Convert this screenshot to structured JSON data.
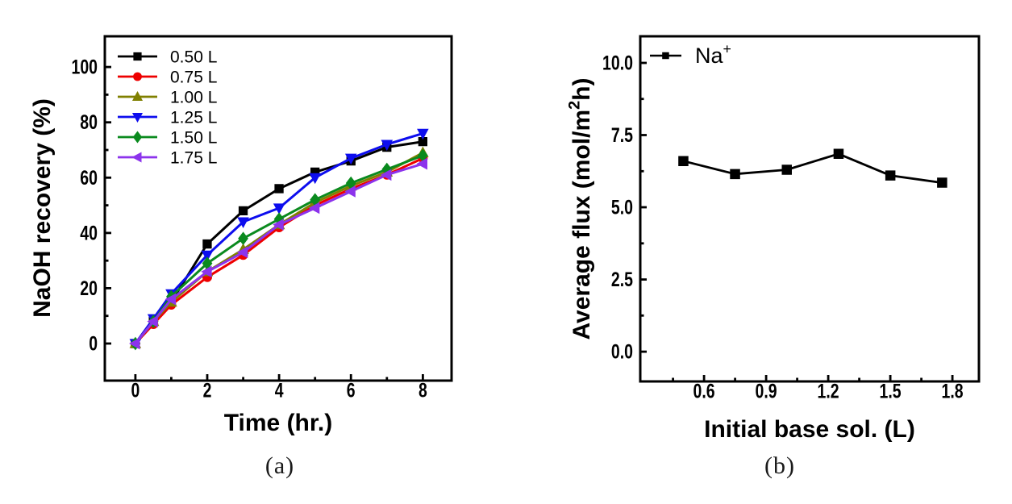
{
  "figure": {
    "captions": {
      "a": "(a)",
      "b": "(b)"
    }
  },
  "chart_data": [
    {
      "id": "panel-a",
      "type": "line",
      "title": "",
      "xlabel": "Time (hr.)",
      "ylabel": "NaOH recovery (%)",
      "xlim": [
        -0.85,
        8.8
      ],
      "ylim": [
        -13.4,
        111.1
      ],
      "x_major_ticks": [
        0,
        2,
        4,
        6,
        8
      ],
      "x_tick_labels": [
        "0",
        "2",
        "4",
        "6",
        "8"
      ],
      "x_minor_ticks": [
        1,
        3,
        5,
        7
      ],
      "y_major_ticks": [
        0,
        20,
        40,
        60,
        80,
        100
      ],
      "y_tick_labels": [
        "0",
        "20",
        "40",
        "60",
        "80",
        "100"
      ],
      "y_minor_ticks": [
        10,
        30,
        50,
        70,
        90
      ],
      "grid": false,
      "legend_position": "top-left",
      "x": [
        0,
        0.5,
        1,
        2,
        3,
        4,
        5,
        6,
        7,
        8
      ],
      "series": [
        {
          "name": "0.50 L",
          "marker": "square",
          "color": "#000000",
          "values": [
            0,
            8,
            15,
            36,
            48,
            56,
            62,
            66,
            71,
            73
          ]
        },
        {
          "name": "0.75 L",
          "marker": "circle",
          "color": "#ee0000",
          "values": [
            0,
            7,
            14,
            24,
            32,
            42,
            50,
            56,
            61,
            67
          ]
        },
        {
          "name": "1.00 L",
          "marker": "triangle-up",
          "color": "#808000",
          "values": [
            0,
            8,
            15,
            26,
            34,
            43,
            51,
            57,
            62,
            69
          ]
        },
        {
          "name": "1.25 L",
          "marker": "triangle-down",
          "color": "#0d0dee",
          "values": [
            0,
            9,
            18,
            32,
            44,
            49,
            60,
            67,
            72,
            76
          ]
        },
        {
          "name": "1.50 L",
          "marker": "diamond",
          "color": "#0a8a1e",
          "values": [
            0,
            8,
            17,
            29,
            38,
            45,
            52,
            58,
            63,
            68
          ]
        },
        {
          "name": "1.75 L",
          "marker": "triangle-left",
          "color": "#8c33ec",
          "values": [
            0,
            8,
            16,
            26,
            33,
            43,
            49,
            55,
            61,
            65
          ]
        }
      ]
    },
    {
      "id": "panel-b",
      "type": "line",
      "title": "",
      "xlabel": "Initial base sol. (L)",
      "ylabel": "Average flux (mol/m²h)",
      "ylabel_parts": [
        {
          "text": "Average flux (mol/m"
        },
        {
          "text": "2",
          "super": true
        },
        {
          "text": "h)"
        }
      ],
      "xlim": [
        0.292,
        1.928
      ],
      "ylim": [
        -1.03,
        10.92
      ],
      "x_major_ticks": [
        0.6,
        0.9,
        1.2,
        1.5,
        1.8
      ],
      "x_tick_labels": [
        "0.6",
        "0.9",
        "1.2",
        "1.5",
        "1.8"
      ],
      "x_minor_ticks": [
        0.45,
        0.75,
        1.05,
        1.35,
        1.65
      ],
      "y_major_ticks": [
        0.0,
        2.5,
        5.0,
        7.5,
        10.0
      ],
      "y_tick_labels": [
        "0.0",
        "2.5",
        "5.0",
        "7.5",
        "10.0"
      ],
      "y_minor_ticks": [
        1.25,
        3.75,
        6.25,
        8.75
      ],
      "grid": false,
      "legend_position": "top-left",
      "x": [
        0.5,
        0.75,
        1.0,
        1.25,
        1.5,
        1.75
      ],
      "series": [
        {
          "name": "Na⁺",
          "name_parts": [
            {
              "text": "Na"
            },
            {
              "text": "+",
              "super": true
            }
          ],
          "marker": "square",
          "color": "#000000",
          "values": [
            6.6,
            6.15,
            6.3,
            6.85,
            6.1,
            5.85
          ]
        }
      ]
    }
  ]
}
